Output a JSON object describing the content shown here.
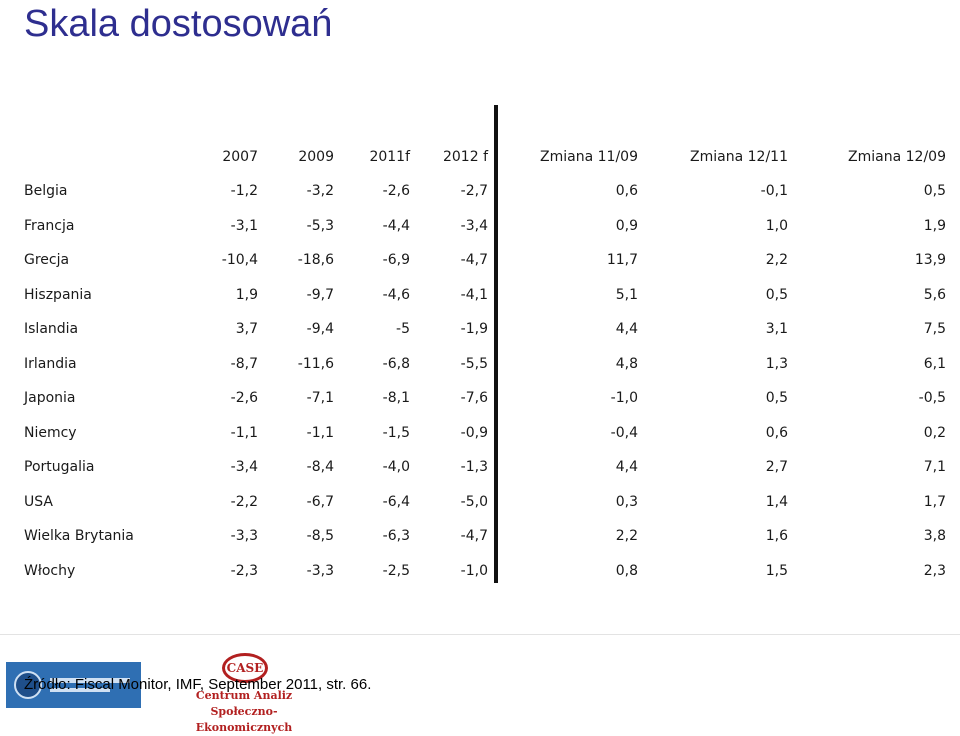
{
  "title": "Skala dostosowań",
  "table": {
    "headers": [
      "",
      "2007",
      "2009",
      "2011f",
      "2012 f",
      "Zmiana 11/09",
      "Zmiana 12/11",
      "Zmiana 12/09"
    ],
    "rows": [
      [
        "Belgia",
        "-1,2",
        "-3,2",
        "-2,6",
        "-2,7",
        "0,6",
        "-0,1",
        "0,5"
      ],
      [
        "Francja",
        "-3,1",
        "-5,3",
        "-4,4",
        "-3,4",
        "0,9",
        "1,0",
        "1,9"
      ],
      [
        "Grecja",
        "-10,4",
        "-18,6",
        "-6,9",
        "-4,7",
        "11,7",
        "2,2",
        "13,9"
      ],
      [
        "Hiszpania",
        "1,9",
        "-9,7",
        "-4,6",
        "-4,1",
        "5,1",
        "0,5",
        "5,6"
      ],
      [
        "Islandia",
        "3,7",
        "-9,4",
        "-5",
        "-1,9",
        "4,4",
        "3,1",
        "7,5"
      ],
      [
        "Irlandia",
        "-8,7",
        "-11,6",
        "-6,8",
        "-5,5",
        "4,8",
        "1,3",
        "6,1"
      ],
      [
        "Japonia",
        "-2,6",
        "-7,1",
        "-8,1",
        "-7,6",
        "-1,0",
        "0,5",
        "-0,5"
      ],
      [
        "Niemcy",
        "-1,1",
        "-1,1",
        "-1,5",
        "-0,9",
        "-0,4",
        "0,6",
        "0,2"
      ],
      [
        "Portugalia",
        "-3,4",
        "-8,4",
        "-4,0",
        "-1,3",
        "4,4",
        "2,7",
        "7,1"
      ],
      [
        "USA",
        "-2,2",
        "-6,7",
        "-6,4",
        "-5,0",
        "0,3",
        "1,4",
        "1,7"
      ],
      [
        "Wielka Brytania",
        "-3,3",
        "-8,5",
        "-6,3",
        "-4,7",
        "2,2",
        "1,6",
        "3,8"
      ],
      [
        "Włochy",
        "-2,3",
        "-3,3",
        "-2,5",
        "-1,0",
        "0,8",
        "1,5",
        "2,3"
      ]
    ]
  },
  "footer": {
    "source": "Źródło: Fiscal Monitor, IMF, September 2011, str. 66.",
    "case_logo_text": "CASE",
    "org_name": "Centrum Analiz Społeczno-Ekonomicznych"
  },
  "colors": {
    "title": "#2e2e8f",
    "logo_red": "#b22020",
    "logo_blue": "#2f6fb3"
  }
}
